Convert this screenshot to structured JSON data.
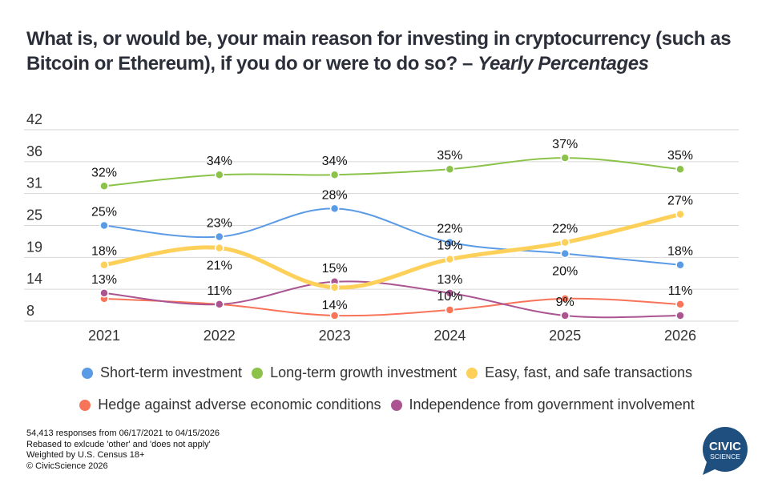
{
  "title": {
    "main": "What is, or would be, your main reason for investing in cryptocurrency (such as Bitcoin or Ethereum), if you do or were to do so? – ",
    "italic": "Yearly Percentages"
  },
  "chart_data": {
    "type": "line",
    "title": "What is, or would be, your main reason for investing in cryptocurrency (such as Bitcoin or Ethereum), if you do or were to do so? – Yearly Percentages",
    "xlabel": "",
    "ylabel": "",
    "categories": [
      "2021",
      "2022",
      "2023",
      "2024",
      "2025",
      "2026"
    ],
    "y_ticks": [
      "42",
      "36",
      "31",
      "25",
      "19",
      "14",
      "8"
    ],
    "ylim": [
      8,
      42
    ],
    "grid": true,
    "legend_position": "bottom",
    "series": [
      {
        "name": "Short-term investment",
        "color": "#5b9be6",
        "values": [
          25,
          23,
          28,
          22,
          20,
          18
        ],
        "labels": [
          "25%",
          "23%",
          "28%",
          "22%",
          "20%",
          "18%"
        ]
      },
      {
        "name": "Long-term growth investment",
        "color": "#8bc34a",
        "values": [
          32,
          34,
          34,
          35,
          37,
          35
        ],
        "labels": [
          "32%",
          "34%",
          "34%",
          "35%",
          "37%",
          "35%"
        ]
      },
      {
        "name": "Easy, fast, and safe transactions",
        "color": "#fdd05a",
        "values": [
          18,
          21,
          14,
          19,
          22,
          27
        ],
        "labels": [
          "18%",
          "21%",
          "14%",
          "19%",
          "22%",
          "27%"
        ]
      },
      {
        "name": "Hedge against adverse economic conditions",
        "color": "#f87459",
        "values": [
          12,
          11,
          9,
          10,
          12,
          11
        ],
        "labels": [
          "",
          "",
          "",
          "10%",
          "",
          "11%"
        ]
      },
      {
        "name": "Independence from government involvement",
        "color": "#ab5491",
        "values": [
          13,
          11,
          15,
          13,
          9,
          9
        ],
        "labels": [
          "13%",
          "11%",
          "15%",
          "13%",
          "9%",
          ""
        ]
      }
    ]
  },
  "legend": {
    "row1": [
      "Short-term investment",
      "Long-term growth investment",
      "Easy, fast, and safe transactions"
    ],
    "row2": [
      "Hedge against adverse economic conditions",
      "Independence from government involvement"
    ]
  },
  "footnotes": [
    "54,413 responses from 06/17/2021 to 04/15/2026",
    "Rebased to exlcude 'other' and 'does not apply'",
    "Weighted by U.S. Census 18+",
    "© CivicScience 2026"
  ],
  "logo": {
    "line1": "CIVIC",
    "line2": "SCIENCE",
    "color": "#1e4f7e"
  }
}
